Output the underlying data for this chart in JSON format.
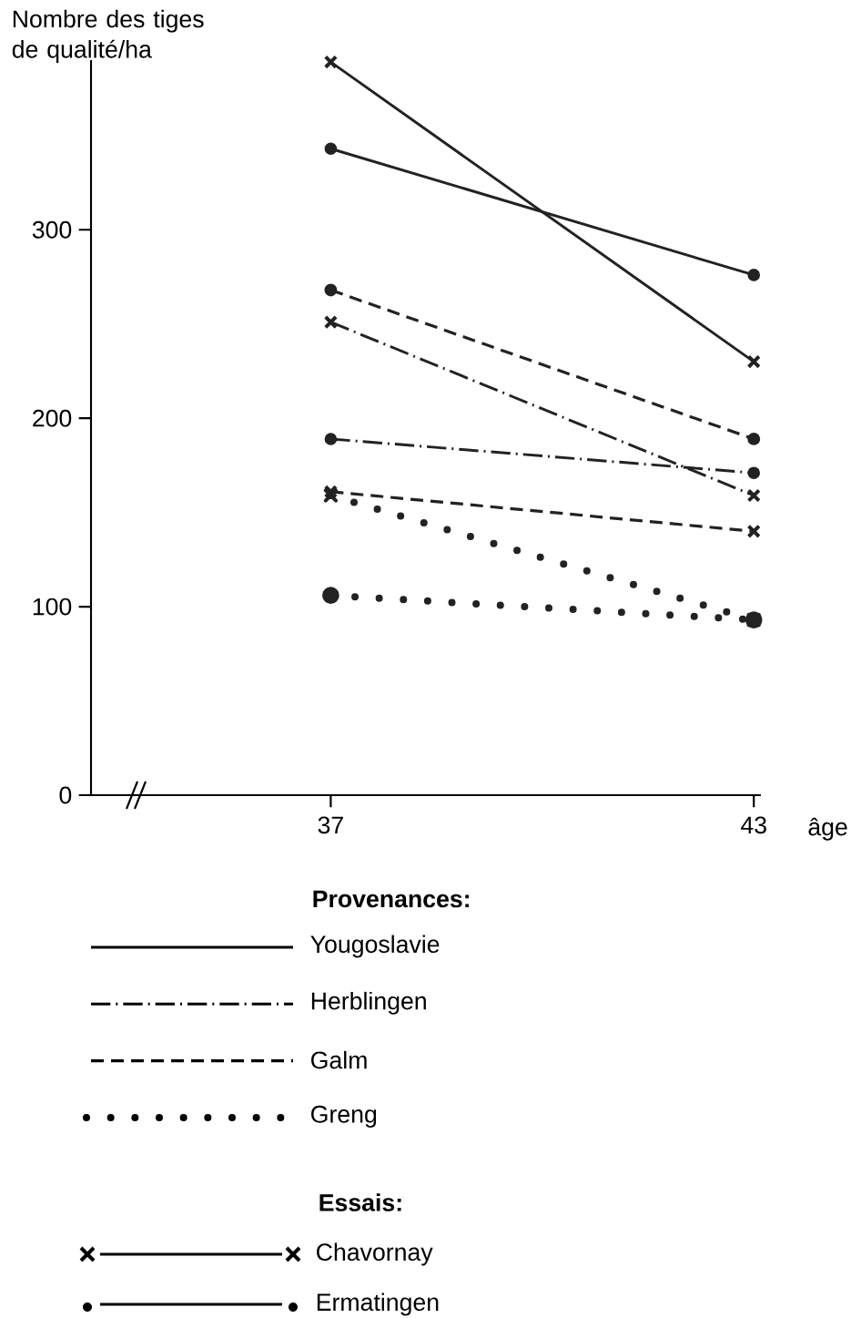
{
  "chart_data": {
    "type": "line",
    "ylabel": "Nombre des tiges de qualité/ha",
    "xlabel": "âge",
    "x": [
      37,
      43
    ],
    "xlim": [
      33.6,
      43.1
    ],
    "xticks": [
      37,
      43
    ],
    "ylim": [
      0,
      390
    ],
    "yticks": [
      0,
      100,
      200,
      300
    ],
    "series": [
      {
        "color": "#222222",
        "line_style": "solid",
        "marker": "cross",
        "values": [
          389,
          230
        ]
      },
      {
        "color": "#222222",
        "line_style": "solid",
        "marker": "circle",
        "values": [
          343,
          276
        ]
      },
      {
        "color": "#222222",
        "line_style": "dashdot",
        "marker": "cross",
        "values": [
          251,
          159
        ]
      },
      {
        "color": "#222222",
        "line_style": "dashdot",
        "marker": "circle",
        "values": [
          189,
          171
        ]
      },
      {
        "color": "#222222",
        "line_style": "dashed",
        "marker": "circle",
        "values": [
          268,
          189
        ]
      },
      {
        "color": "#222222",
        "line_style": "dashed",
        "marker": "cross",
        "values": [
          161,
          140
        ]
      },
      {
        "color": "#222222",
        "line_style": "dotted",
        "marker": "cross",
        "values": [
          159,
          93
        ]
      },
      {
        "color": "#222222",
        "line_style": "dotted",
        "marker": "circle",
        "values": [
          106,
          93
        ]
      }
    ],
    "annotations": [
      "Provenances:",
      "Yougoslavie",
      "Herblingen",
      "Galm",
      "Greng",
      "Essais:",
      "Chavornay",
      "Ermatingen"
    ]
  }
}
